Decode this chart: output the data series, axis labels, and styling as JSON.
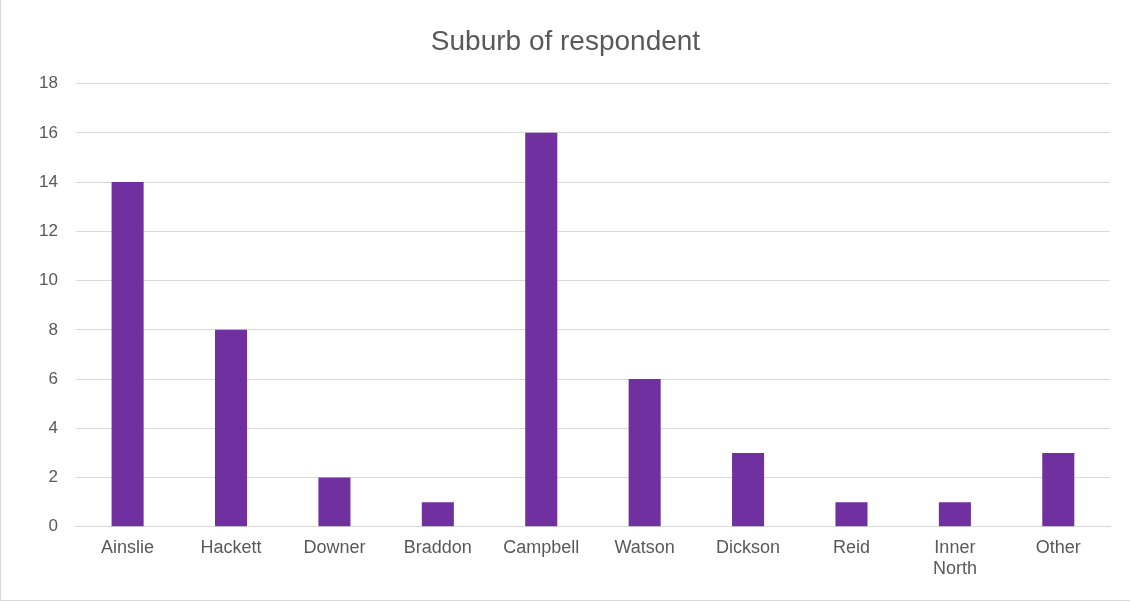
{
  "chart_data": {
    "type": "bar",
    "title": "Suburb of respondent",
    "categories": [
      "Ainslie",
      "Hackett",
      "Downer",
      "Braddon",
      "Campbell",
      "Watson",
      "Dickson",
      "Reid",
      "Inner North",
      "Other"
    ],
    "values": [
      14,
      8,
      2,
      1,
      16,
      6,
      3,
      1,
      1,
      3
    ],
    "color": "#7030a0",
    "ylim": [
      0,
      18
    ],
    "yticks": [
      0,
      2,
      4,
      6,
      8,
      10,
      12,
      14,
      16,
      18
    ],
    "grid": "y",
    "legend": false
  }
}
